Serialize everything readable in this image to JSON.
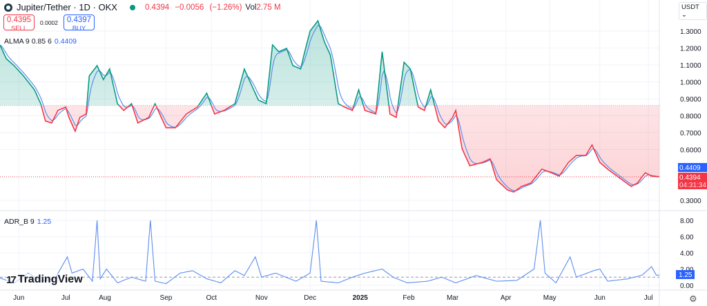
{
  "header": {
    "title": "Jupiter/Tether · 1D · OKX",
    "last": "0.4394",
    "change": "−0.0056",
    "change_pct": "(−1.26%)",
    "vol_label": "Vol",
    "vol_value": "2.75 M"
  },
  "trade": {
    "sell_price": "0.4395",
    "sell_label": "SELL",
    "spread": "0.0002",
    "buy_price": "0.4397",
    "buy_label": "BUY"
  },
  "indicators": {
    "alma": {
      "name": "ALMA 9 0.85 6",
      "value": "0.4409"
    },
    "adr": {
      "name": "ADR_B 9",
      "value": "1.25"
    }
  },
  "currency": "USDT",
  "branding": "TradingView",
  "colors": {
    "up": "#089981",
    "down": "#f23645",
    "alma": "#5b8def",
    "adr": "#5b8def",
    "accent": "#2962ff"
  },
  "price_labels": {
    "alma": "0.4409",
    "last": "0.4394",
    "countdown": "04:31:34",
    "adr": "1.25"
  },
  "chart_data": [
    {
      "type": "line",
      "title": "Jupiter/Tether · 1D · OKX",
      "baseline": 0.86,
      "ylim": [
        0.22,
        1.48
      ],
      "xlim": [
        0,
        421
      ],
      "yticks": [
        "1.3000",
        "1.2000",
        "1.1000",
        "1.0000",
        "0.9000",
        "0.8000",
        "0.7000",
        "0.6000",
        "0.3000"
      ],
      "ytick_values": [
        1.3,
        1.2,
        1.1,
        1.0,
        0.9,
        0.8,
        0.7,
        0.6,
        0.3
      ],
      "xticks": [
        {
          "label": "Jun",
          "day": 12
        },
        {
          "label": "Jul",
          "day": 42
        },
        {
          "label": "Aug",
          "day": 67
        },
        {
          "label": "Sep",
          "day": 106
        },
        {
          "label": "Oct",
          "day": 135
        },
        {
          "label": "Nov",
          "day": 167
        },
        {
          "label": "Dec",
          "day": 198
        },
        {
          "label": "2025",
          "day": 230
        },
        {
          "label": "Feb",
          "day": 261
        },
        {
          "label": "Mar",
          "day": 289
        },
        {
          "label": "Apr",
          "day": 323
        },
        {
          "label": "May",
          "day": 351
        },
        {
          "label": "Jun",
          "day": 383
        },
        {
          "label": "Jul",
          "day": 414
        }
      ],
      "price": [
        [
          0,
          1.218
        ],
        [
          4,
          1.137
        ],
        [
          9,
          1.096
        ],
        [
          15,
          1.035
        ],
        [
          22,
          0.953
        ],
        [
          26,
          0.871
        ],
        [
          29,
          0.769
        ],
        [
          33,
          0.757
        ],
        [
          37,
          0.831
        ],
        [
          42,
          0.851
        ],
        [
          44,
          0.79
        ],
        [
          48,
          0.708
        ],
        [
          51,
          0.79
        ],
        [
          55,
          0.81
        ],
        [
          57,
          1.035
        ],
        [
          62,
          1.096
        ],
        [
          66,
          1.014
        ],
        [
          70,
          1.076
        ],
        [
          75,
          0.871
        ],
        [
          79,
          0.831
        ],
        [
          84,
          0.871
        ],
        [
          88,
          0.757
        ],
        [
          95,
          0.79
        ],
        [
          99,
          0.871
        ],
        [
          106,
          0.729
        ],
        [
          112,
          0.729
        ],
        [
          119,
          0.81
        ],
        [
          126,
          0.851
        ],
        [
          132,
          0.933
        ],
        [
          137,
          0.81
        ],
        [
          143,
          0.831
        ],
        [
          150,
          0.871
        ],
        [
          156,
          1.076
        ],
        [
          161,
          0.973
        ],
        [
          165,
          0.892
        ],
        [
          170,
          0.871
        ],
        [
          174,
          1.218
        ],
        [
          178,
          1.178
        ],
        [
          183,
          1.198
        ],
        [
          187,
          1.096
        ],
        [
          192,
          1.076
        ],
        [
          194,
          1.157
        ],
        [
          198,
          1.3
        ],
        [
          203,
          1.361
        ],
        [
          207,
          1.239
        ],
        [
          211,
          1.157
        ],
        [
          216,
          0.871
        ],
        [
          220,
          0.851
        ],
        [
          225,
          0.831
        ],
        [
          229,
          0.953
        ],
        [
          233,
          0.831
        ],
        [
          240,
          0.81
        ],
        [
          244,
          1.178
        ],
        [
          249,
          0.81
        ],
        [
          253,
          0.79
        ],
        [
          258,
          1.116
        ],
        [
          262,
          1.076
        ],
        [
          267,
          0.851
        ],
        [
          271,
          0.831
        ],
        [
          275,
          0.953
        ],
        [
          280,
          0.769
        ],
        [
          284,
          0.729
        ],
        [
          289,
          0.79
        ],
        [
          291,
          0.831
        ],
        [
          295,
          0.606
        ],
        [
          300,
          0.504
        ],
        [
          308,
          0.524
        ],
        [
          313,
          0.545
        ],
        [
          317,
          0.422
        ],
        [
          324,
          0.361
        ],
        [
          328,
          0.349
        ],
        [
          333,
          0.382
        ],
        [
          339,
          0.402
        ],
        [
          346,
          0.484
        ],
        [
          352,
          0.463
        ],
        [
          357,
          0.443
        ],
        [
          363,
          0.524
        ],
        [
          368,
          0.565
        ],
        [
          374,
          0.565
        ],
        [
          378,
          0.627
        ],
        [
          383,
          0.524
        ],
        [
          388,
          0.484
        ],
        [
          394,
          0.443
        ],
        [
          403,
          0.382
        ],
        [
          407,
          0.402
        ],
        [
          412,
          0.463
        ],
        [
          416,
          0.443
        ],
        [
          421,
          0.439
        ]
      ]
    },
    {
      "type": "line",
      "title": "ADR_B 9",
      "ylim": [
        -0.5,
        8.8
      ],
      "yticks": [
        "8.00",
        "6.00",
        "4.00",
        "2.00",
        "0.00"
      ],
      "ytick_values": [
        8,
        6,
        4,
        2,
        0
      ],
      "reference": 1.0,
      "values": [
        [
          0,
          0.9
        ],
        [
          9,
          0.3
        ],
        [
          18,
          1.5
        ],
        [
          26,
          0.5
        ],
        [
          35,
          0.8
        ],
        [
          43,
          3.5
        ],
        [
          46,
          1.5
        ],
        [
          53,
          2
        ],
        [
          59,
          0.5
        ],
        [
          62,
          8
        ],
        [
          64,
          0.8
        ],
        [
          68,
          2
        ],
        [
          75,
          0.3
        ],
        [
          84,
          1
        ],
        [
          93,
          0.5
        ],
        [
          96,
          8
        ],
        [
          99,
          0.5
        ],
        [
          106,
          0.2
        ],
        [
          115,
          1.5
        ],
        [
          123,
          1.8
        ],
        [
          132,
          0.8
        ],
        [
          141,
          0.3
        ],
        [
          150,
          1.8
        ],
        [
          156,
          1.2
        ],
        [
          163,
          3.5
        ],
        [
          167,
          1
        ],
        [
          176,
          1.5
        ],
        [
          189,
          0.5
        ],
        [
          198,
          1.5
        ],
        [
          202,
          8
        ],
        [
          205,
          0.5
        ],
        [
          216,
          0.3
        ],
        [
          225,
          1
        ],
        [
          233,
          1.5
        ],
        [
          244,
          2
        ],
        [
          251,
          1
        ],
        [
          260,
          0.3
        ],
        [
          273,
          0.5
        ],
        [
          282,
          1
        ],
        [
          291,
          0.3
        ],
        [
          304,
          1.2
        ],
        [
          317,
          0.5
        ],
        [
          330,
          0.6
        ],
        [
          341,
          2
        ],
        [
          345,
          8
        ],
        [
          348,
          1.5
        ],
        [
          355,
          0.3
        ],
        [
          364,
          3.5
        ],
        [
          368,
          1
        ],
        [
          379,
          1.8
        ],
        [
          383,
          2
        ],
        [
          388,
          0.5
        ],
        [
          401,
          0.8
        ],
        [
          410,
          1.25
        ],
        [
          416,
          2.3
        ],
        [
          419,
          1.25
        ]
      ]
    }
  ]
}
